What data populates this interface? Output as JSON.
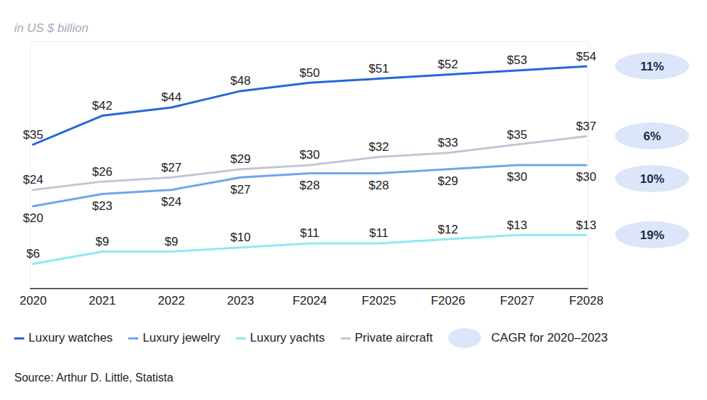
{
  "chart_data": {
    "type": "line",
    "subtitle": "in US $ billion",
    "caption": "Source: Arthur D. Little, Statista",
    "cagr_legend": "CAGR for 2020–2023",
    "x": [
      "2020",
      "2021",
      "2022",
      "2023",
      "F2024",
      "F2025",
      "F2026",
      "F2027",
      "F2028"
    ],
    "ylim": [
      0,
      60
    ],
    "tick_labels": "x",
    "data_labels": true,
    "legend": "bottom",
    "series": [
      {
        "name": "Luxury watches",
        "color": "#2468d8",
        "values": [
          35,
          42,
          44,
          48,
          50,
          51,
          52,
          53,
          54
        ],
        "value_labels": [
          "$35",
          "$42",
          "$44",
          "$48",
          "$50",
          "$51",
          "$52",
          "$53",
          "$54"
        ],
        "cagr": "11%"
      },
      {
        "name": "Luxury jewelry",
        "color": "#6ea6ea",
        "values": [
          20,
          23,
          24,
          27,
          28,
          28,
          29,
          30,
          30
        ],
        "value_labels": [
          "$20",
          "$23",
          "$24",
          "$27",
          "$28",
          "$28",
          "$29",
          "$30",
          "$30"
        ],
        "cagr": "10%"
      },
      {
        "name": "Luxury yachts",
        "color": "#8ee8f4",
        "values": [
          6,
          9,
          9,
          10,
          11,
          11,
          12,
          13,
          13
        ],
        "value_labels": [
          "$6",
          "$9",
          "$9",
          "$10",
          "$11",
          "$11",
          "$12",
          "$13",
          "$13"
        ],
        "cagr": "19%"
      },
      {
        "name": "Private aircraft",
        "color": "#c4c4d6",
        "values": [
          24,
          26,
          27,
          29,
          30,
          32,
          33,
          35,
          37
        ],
        "value_labels": [
          "$24",
          "$26",
          "$27",
          "$29",
          "$30",
          "$32",
          "$33",
          "$35",
          "$37"
        ],
        "cagr": "6%"
      }
    ]
  }
}
